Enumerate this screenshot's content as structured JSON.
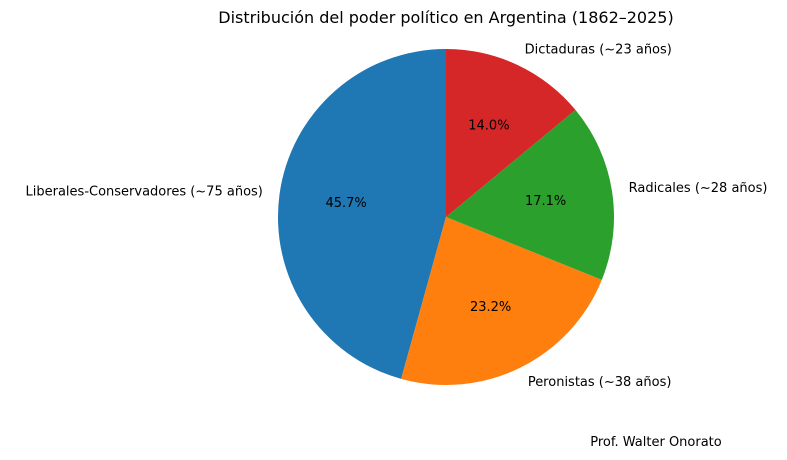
{
  "chart_data": {
    "type": "pie",
    "title": "Distribución del poder político en Argentina (1862–2025)",
    "start_angle_deg": 90,
    "direction": "counterclockwise",
    "slices": [
      {
        "label": "Liberales-Conservadores (~75 años)",
        "value": 45.7,
        "pct_label": "45.7%",
        "color": "#1f77b4"
      },
      {
        "label": "Peronistas (~38 años)",
        "value": 23.2,
        "pct_label": "23.2%",
        "color": "#ff7f0e"
      },
      {
        "label": "Radicales (~28 años)",
        "value": 17.1,
        "pct_label": "17.1%",
        "color": "#2ca02c"
      },
      {
        "label": "Dictaduras (~23 años)",
        "value": 14.0,
        "pct_label": "14.0%",
        "color": "#d62728"
      }
    ]
  },
  "footer": {
    "credit": "Prof. Walter Onorato"
  }
}
